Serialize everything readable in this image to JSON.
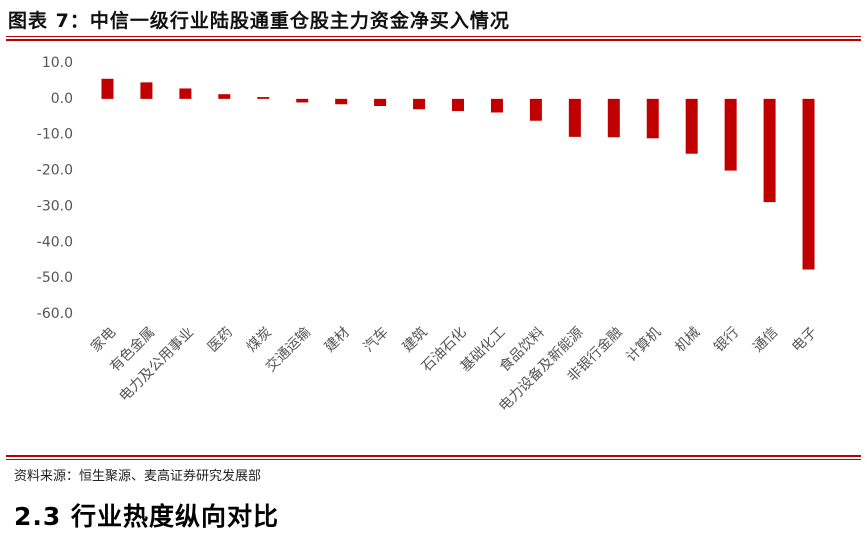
{
  "chart_data": {
    "type": "bar",
    "title": "图表 7：中信一级行业陆股通重仓股主力资金净买入情况",
    "categories": [
      "家电",
      "有色金属",
      "电力及公用事业",
      "医药",
      "煤炭",
      "交通运输",
      "建材",
      "汽车",
      "建筑",
      "石油石化",
      "基础化工",
      "食品饮料",
      "电力设备及新能源",
      "非银行金融",
      "计算机",
      "机械",
      "银行",
      "通信",
      "电子"
    ],
    "values": [
      5.6,
      4.6,
      2.9,
      1.3,
      0.5,
      -1.0,
      -1.5,
      -2.0,
      -2.9,
      -3.4,
      -3.8,
      -6.1,
      -10.6,
      -10.7,
      -11.0,
      -15.3,
      -20.0,
      -28.8,
      -47.6
    ],
    "color": "#c00000",
    "ylim": [
      -60,
      10
    ],
    "yticks": [
      {
        "value": 10,
        "label": "10.0"
      },
      {
        "value": 0,
        "label": "0.0"
      },
      {
        "value": -10,
        "label": "-10.0"
      },
      {
        "value": -20,
        "label": "-20.0"
      },
      {
        "value": -30,
        "label": "-30.0"
      },
      {
        "value": -40,
        "label": "-40.0"
      },
      {
        "value": -50,
        "label": "-50.0"
      },
      {
        "value": -60,
        "label": "-60.0"
      }
    ],
    "grid": false
  },
  "source": "资料来源：恒生聚源、麦高证券研究发展部",
  "section_heading": "2.3 行业热度纵向对比"
}
